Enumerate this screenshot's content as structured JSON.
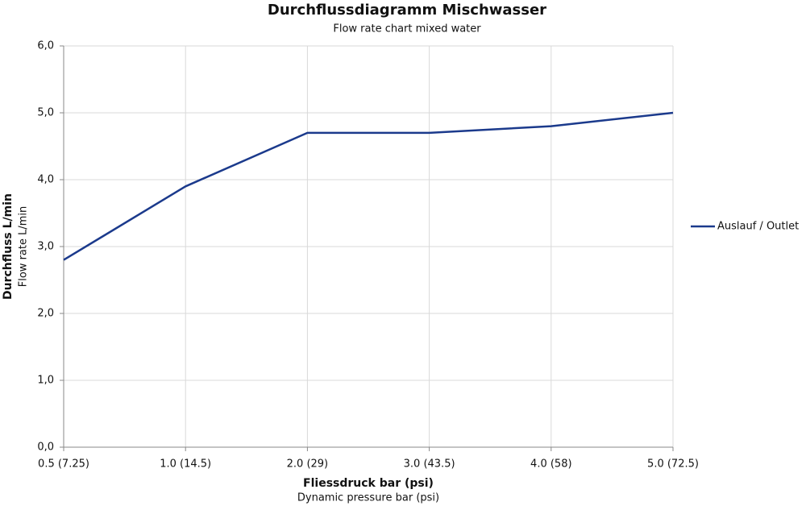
{
  "chart_data": {
    "type": "line",
    "title": "Durchflussdiagramm Mischwasser",
    "subtitle": "Flow rate chart mixed water",
    "y_title": "Durchfluss L/min",
    "y_subtitle": "Flow rate L/min",
    "x_title": "Fliessdruck bar (psi)",
    "x_subtitle": "Dynamic pressure bar (psi)",
    "categories": [
      "0.5 (7.25)",
      "1.0 (14.5)",
      "2.0 (29)",
      "3.0 (43.5)",
      "4.0 (58)",
      "5.0 (72.5)"
    ],
    "series": [
      {
        "name": "Auslauf / Outlet",
        "color": "#1b3a8c",
        "values": [
          2.8,
          3.9,
          4.7,
          4.7,
          4.8,
          5.0
        ]
      }
    ],
    "ylim": [
      0,
      6
    ],
    "yticks": [
      {
        "value": 0,
        "label": "0,0"
      },
      {
        "value": 1,
        "label": "1,0"
      },
      {
        "value": 2,
        "label": "2,0"
      },
      {
        "value": 3,
        "label": "3,0"
      },
      {
        "value": 4,
        "label": "4,0"
      },
      {
        "value": 5,
        "label": "5,0"
      },
      {
        "value": 6,
        "label": "6,0"
      }
    ],
    "grid": true,
    "legend": "right"
  }
}
